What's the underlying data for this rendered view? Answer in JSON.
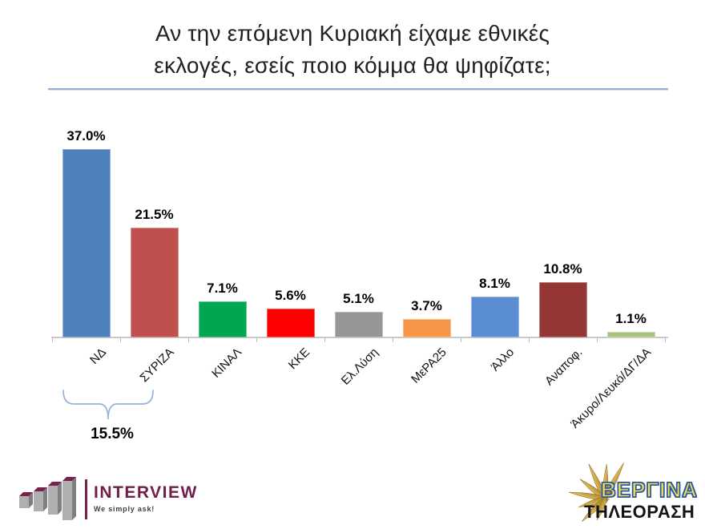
{
  "title": {
    "line1": "Αν την επόμενη Κυριακή είχαμε εθνικές",
    "line2": "εκλογές, εσείς ποιο κόμμα θα ψηφίζατε;"
  },
  "accent_line_color": "#94B2D7",
  "chart_data": {
    "type": "bar",
    "title": "Αν την επόμενη Κυριακή είχαμε εθνικές εκλογές, εσείς ποιο κόμμα θα ψηφίζατε;",
    "categories": [
      "ΝΔ",
      "ΣΥΡΙΖΑ",
      "ΚΙΝΑΛ",
      "ΚΚΕ",
      "Ελ.Λύση",
      "ΜεΡΑ25",
      "Άλλο",
      "Αναποφ.",
      "Άκυρο/Λευκό/ΔΓ/ΔΑ"
    ],
    "values": [
      37.0,
      21.5,
      7.1,
      5.6,
      5.1,
      3.7,
      8.1,
      10.8,
      1.1
    ],
    "value_labels": [
      "37.0%",
      "21.5%",
      "7.1%",
      "5.6%",
      "5.1%",
      "3.7%",
      "8.1%",
      "10.8%",
      "1.1%"
    ],
    "bar_colors": [
      "#4F81BD",
      "#C0504D",
      "#00A750",
      "#FF0000",
      "#969696",
      "#F79646",
      "#5B8DD3",
      "#943634",
      "#A8C47E"
    ],
    "slugs": [
      "nd",
      "syriza",
      "kinal",
      "kke",
      "elliniki-lysi",
      "mera25",
      "allo",
      "anapofasistoi",
      "akyro-leyko-dg-da"
    ],
    "xlabel": "",
    "ylabel": "",
    "ylim": [
      0,
      40
    ],
    "grid": false,
    "legend": "none",
    "annotation": {
      "text": "15.5%",
      "note": "difference bracket spanning first two bars",
      "span_categories": [
        "ΝΔ",
        "ΣΥΡΙΖΑ"
      ],
      "bracket_color": "#95B3D7"
    }
  },
  "logos": {
    "interview": {
      "name": "INTERVIEW",
      "tagline": "We simply ask!",
      "brand_color": "#7A1F4E"
    },
    "vergina": {
      "name": "ΒΕΡΓΙΝΑ",
      "subtitle": "ΤΗΛΕΟΡΑΣΗ",
      "sun_color": "#CDA234",
      "name_fill": "#F7DE4C",
      "name_stroke": "#2B5AA6"
    }
  }
}
